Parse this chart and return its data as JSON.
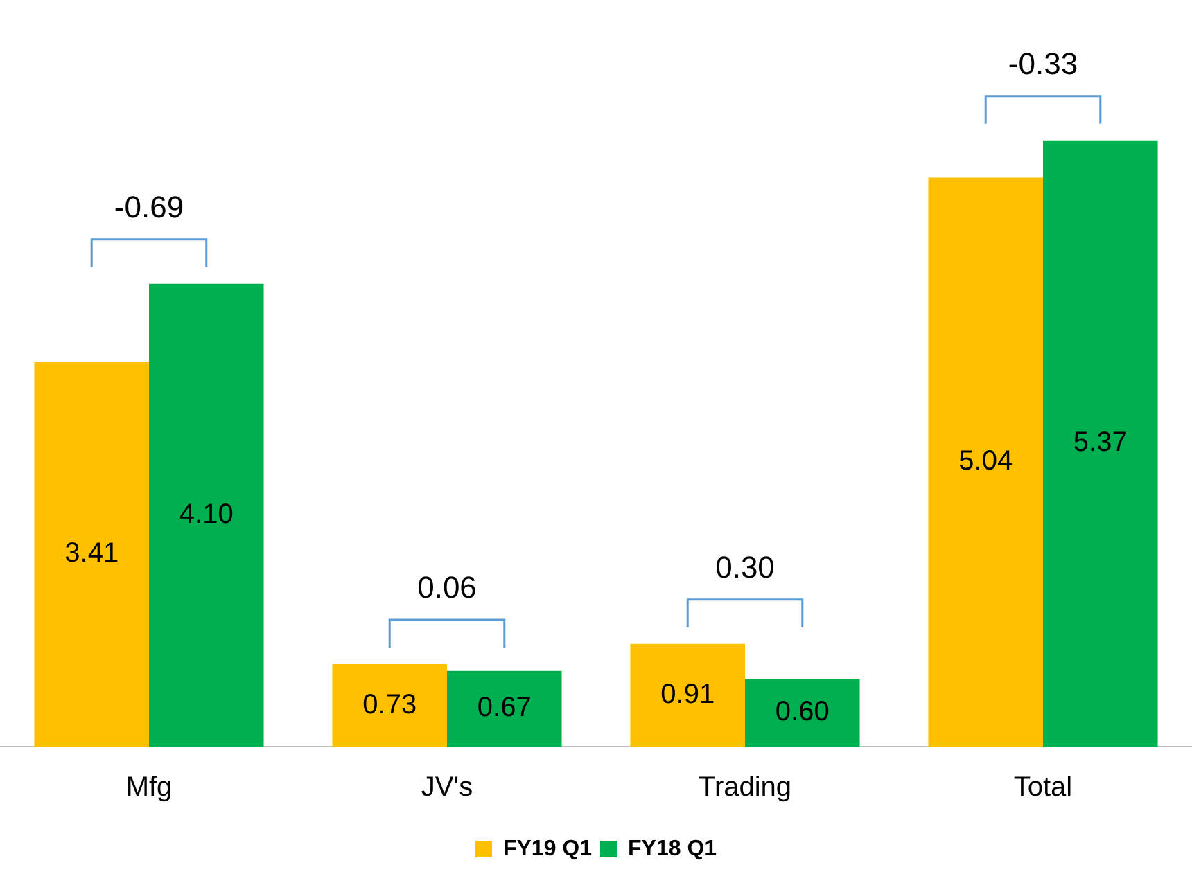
{
  "chart_data": {
    "type": "bar",
    "categories": [
      "Mfg",
      "JV's",
      "Trading",
      "Total"
    ],
    "series": [
      {
        "name": "FY19 Q1",
        "color": "#ffc000",
        "values": [
          3.41,
          0.73,
          0.91,
          5.04
        ],
        "value_labels": [
          "3.41",
          "0.73",
          "0.91",
          "5.04"
        ]
      },
      {
        "name": "FY18 Q1",
        "color": "#00b050",
        "values": [
          4.1,
          0.67,
          0.6,
          5.37
        ],
        "value_labels": [
          "4.10",
          "0.67",
          "0.60",
          "5.37"
        ]
      }
    ],
    "legend": "bottom",
    "annotations": [
      "-0.69",
      "0.06",
      "0.30",
      "-0.33"
    ]
  }
}
